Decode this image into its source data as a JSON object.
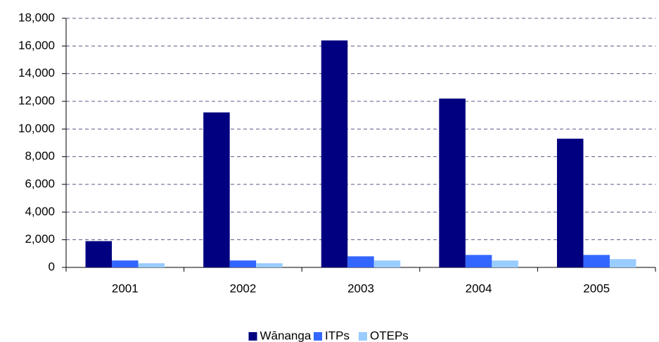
{
  "chart_data": {
    "type": "bar",
    "categories": [
      "2001",
      "2002",
      "2003",
      "2004",
      "2005"
    ],
    "series": [
      {
        "name": "Wānanga",
        "color": "#000080",
        "values": [
          1900,
          11200,
          16400,
          12200,
          9300
        ]
      },
      {
        "name": "ITPs",
        "color": "#3366ff",
        "values": [
          500,
          500,
          800,
          900,
          900
        ]
      },
      {
        "name": "OTEPs",
        "color": "#99ccff",
        "values": [
          300,
          300,
          500,
          500,
          600
        ]
      }
    ],
    "ylim": [
      0,
      18000
    ],
    "yticks": [
      0,
      {
        "value": 2000,
        "label": "2,000"
      },
      {
        "value": 4000,
        "label": "4,000"
      },
      {
        "value": 6000,
        "label": "6,000"
      },
      {
        "value": 8000,
        "label": "8,000"
      },
      {
        "value": 10000,
        "label": "10,000"
      },
      {
        "value": 12000,
        "label": "12,000"
      },
      {
        "value": 14000,
        "label": "14,000"
      },
      {
        "value": 16000,
        "label": "16,000"
      },
      {
        "value": 18000,
        "label": "18,000"
      }
    ],
    "grid": true,
    "legend": "bottom"
  }
}
